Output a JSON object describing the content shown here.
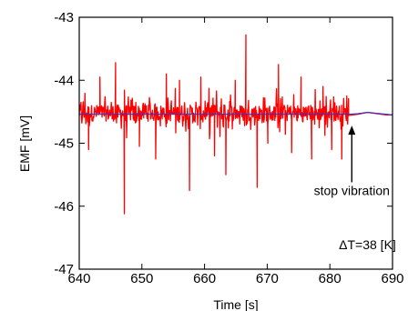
{
  "chart_data": {
    "type": "line",
    "title": "",
    "xlabel": "Time [s]",
    "ylabel": "EMF [mV]",
    "xlim": [
      640,
      690
    ],
    "ylim": [
      -47,
      -43
    ],
    "x_ticks": [
      640,
      650,
      660,
      670,
      680,
      690
    ],
    "y_ticks": [
      -47,
      -46,
      -45,
      -44,
      -43
    ],
    "x_tick_labels": [
      "640",
      "650",
      "660",
      "670",
      "680",
      "690"
    ],
    "y_tick_labels": [
      "-47",
      "-46",
      "-45",
      "-44",
      "-43"
    ],
    "grid": false,
    "legend": "none",
    "series": [
      {
        "color": "#ff0000",
        "noise": {
          "x_start": 640,
          "x_end": 683,
          "baseline": -44.52,
          "spikes": [
            {
              "x": 641.5,
              "y": -45.1
            },
            {
              "x": 643.3,
              "y": -43.95
            },
            {
              "x": 645.8,
              "y": -43.72
            },
            {
              "x": 647.2,
              "y": -46.12
            },
            {
              "x": 649.6,
              "y": -45.05
            },
            {
              "x": 652.2,
              "y": -45.25
            },
            {
              "x": 653.9,
              "y": -43.9
            },
            {
              "x": 656.0,
              "y": -44.0
            },
            {
              "x": 657.6,
              "y": -45.75
            },
            {
              "x": 659.4,
              "y": -43.95
            },
            {
              "x": 661.6,
              "y": -45.2
            },
            {
              "x": 663.4,
              "y": -45.5
            },
            {
              "x": 664.9,
              "y": -44.0
            },
            {
              "x": 666.6,
              "y": -43.28
            },
            {
              "x": 668.4,
              "y": -45.7
            },
            {
              "x": 670.1,
              "y": -45.0
            },
            {
              "x": 671.8,
              "y": -43.75
            },
            {
              "x": 673.9,
              "y": -45.15
            },
            {
              "x": 675.4,
              "y": -43.95
            },
            {
              "x": 677.1,
              "y": -45.25
            },
            {
              "x": 678.9,
              "y": -44.1
            },
            {
              "x": 680.3,
              "y": -45.1
            },
            {
              "x": 681.9,
              "y": -45.25
            },
            {
              "x": 682.7,
              "y": -44.25
            }
          ]
        },
        "points": [
          [
            683.0,
            -44.56
          ],
          [
            684.5,
            -44.54
          ],
          [
            686.0,
            -44.51
          ],
          [
            687.5,
            -44.53
          ],
          [
            689.0,
            -44.55
          ],
          [
            690.0,
            -44.55
          ]
        ]
      },
      {
        "color": "#3333cc",
        "points": [
          [
            640,
            -44.54
          ],
          [
            683,
            -44.54
          ],
          [
            684.5,
            -44.53
          ],
          [
            686,
            -44.51
          ],
          [
            688,
            -44.53
          ],
          [
            690,
            -44.55
          ]
        ]
      }
    ],
    "annotations": [
      {
        "text": "stop vibration",
        "x": 683.5,
        "y": -45.82
      },
      {
        "text": "ΔT=38 [K]",
        "x": 686,
        "y": -46.68
      }
    ],
    "arrow": {
      "x": 683.5,
      "y_from": -45.62,
      "y_to": -44.72
    }
  }
}
